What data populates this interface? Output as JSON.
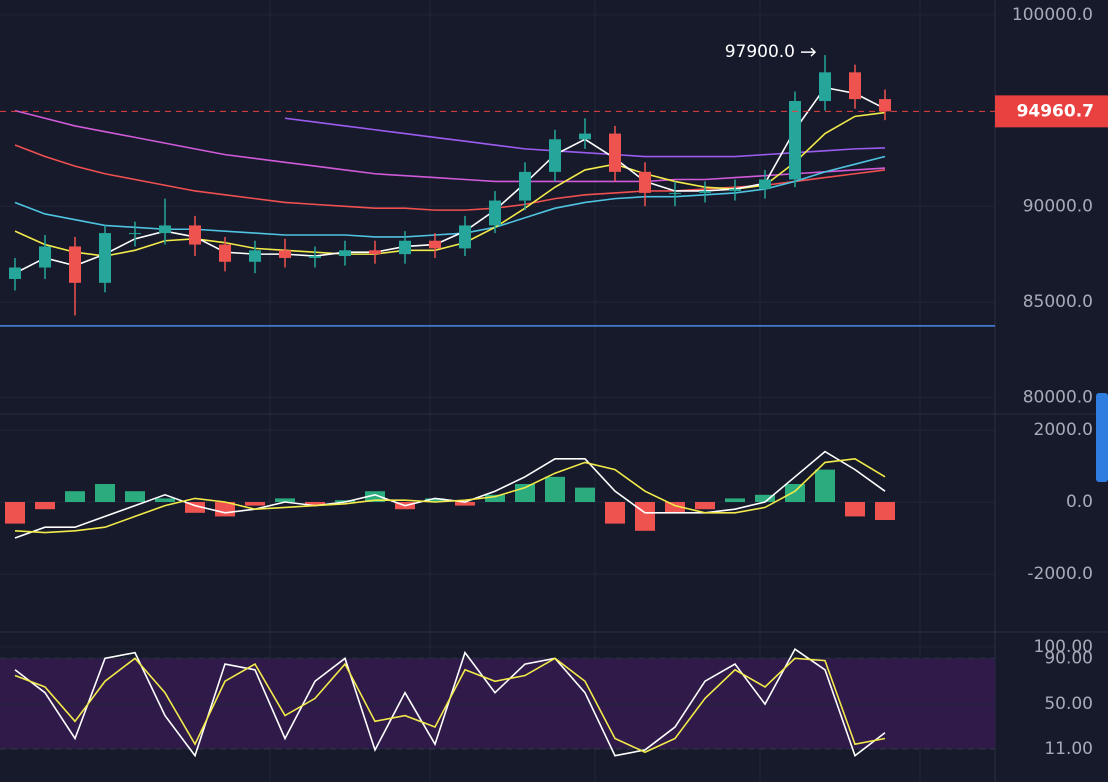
{
  "chart_data": [
    {
      "type": "candlestick",
      "categories": [
        null,
        null,
        null,
        null,
        null,
        null,
        null,
        null,
        null,
        null,
        null,
        null,
        null,
        null,
        null,
        null,
        null,
        null,
        null,
        null,
        null,
        null,
        null,
        null,
        null,
        null,
        null,
        null,
        null,
        null
      ],
      "open": [
        86200,
        86800,
        87900,
        86000,
        88600,
        88600,
        89000,
        88000,
        87100,
        87700,
        87300,
        87400,
        87700,
        87500,
        88200,
        87800,
        89000,
        90300,
        91800,
        93500,
        93800,
        91800,
        90700,
        90700,
        90800,
        90900,
        91400,
        95500,
        97000,
        95600
      ],
      "high": [
        87300,
        88500,
        88400,
        89000,
        89200,
        90400,
        89500,
        88400,
        88200,
        88300,
        87900,
        88200,
        88200,
        88700,
        88600,
        89500,
        90800,
        92300,
        94000,
        94600,
        94200,
        92300,
        91300,
        91300,
        91400,
        91900,
        96000,
        97900,
        97400,
        96100
      ],
      "low": [
        85600,
        86200,
        84300,
        85500,
        87900,
        88000,
        87400,
        86600,
        86500,
        86800,
        86800,
        86900,
        87000,
        87000,
        87300,
        87400,
        88600,
        89800,
        91300,
        93000,
        91300,
        90000,
        90000,
        90200,
        90300,
        90400,
        91000,
        95000,
        95100,
        94500
      ],
      "close": [
        86800,
        87900,
        86000,
        88600,
        88600,
        89000,
        88000,
        87100,
        87700,
        87300,
        87400,
        87700,
        87500,
        88200,
        87800,
        89000,
        90300,
        91800,
        93500,
        93800,
        91800,
        90700,
        90700,
        90800,
        90900,
        91400,
        95500,
        97000,
        95600,
        94961
      ],
      "up_color": "#26a69a",
      "down_color": "#ef5350",
      "series": [
        {
          "color": "#d05ad8",
          "values": [
            95000,
            94600,
            94200,
            93900,
            93600,
            93300,
            93000,
            92700,
            92500,
            92300,
            92100,
            91900,
            91700,
            91600,
            91500,
            91400,
            91300,
            91300,
            91300,
            91300,
            91300,
            91300,
            91400,
            91400,
            91500,
            91600,
            91700,
            91800,
            91900,
            92000
          ]
        },
        {
          "color": "#9c5cf0",
          "values": [
            null,
            null,
            null,
            null,
            null,
            null,
            null,
            null,
            null,
            94600,
            94400,
            94200,
            94000,
            93800,
            93600,
            93400,
            93200,
            93000,
            92900,
            92800,
            92700,
            92600,
            92600,
            92600,
            92600,
            92700,
            92800,
            92900,
            93000,
            93050
          ]
        },
        {
          "color": "#f05050",
          "values": [
            93200,
            92600,
            92100,
            91700,
            91400,
            91100,
            90800,
            90600,
            90400,
            90200,
            90100,
            90000,
            89900,
            89900,
            89800,
            89800,
            89900,
            90100,
            90400,
            90600,
            90700,
            90800,
            90800,
            90900,
            91000,
            91100,
            91300,
            91500,
            91700,
            91900
          ]
        },
        {
          "color": "#4fc3e0",
          "values": [
            90200,
            89600,
            89300,
            89000,
            88900,
            88800,
            88800,
            88700,
            88600,
            88500,
            88500,
            88500,
            88400,
            88400,
            88500,
            88600,
            88900,
            89400,
            89900,
            90200,
            90400,
            90500,
            90500,
            90600,
            90700,
            90900,
            91300,
            91800,
            92200,
            92600
          ]
        },
        {
          "color": "#f2ea4a",
          "values": [
            88700,
            88000,
            87600,
            87400,
            87700,
            88200,
            88300,
            88100,
            87800,
            87700,
            87600,
            87500,
            87500,
            87700,
            87700,
            88100,
            88900,
            89900,
            91000,
            91900,
            92200,
            91700,
            91300,
            91000,
            90900,
            91100,
            92300,
            93800,
            94700,
            94900
          ]
        },
        {
          "color": "#ffffff",
          "values": [
            86500,
            87300,
            86900,
            87500,
            88300,
            88700,
            88400,
            87600,
            87500,
            87500,
            87400,
            87600,
            87600,
            87900,
            88000,
            88700,
            89800,
            91200,
            92700,
            93500,
            92500,
            91300,
            90800,
            90800,
            90900,
            91200,
            94000,
            96200,
            95900,
            95100
          ]
        }
      ],
      "last_price": 94960.7,
      "last_price_color": "#e8413f",
      "hline": 83750,
      "hline_color": "#4a86e8",
      "annotation": {
        "value": 97900,
        "label": "97900.0"
      },
      "ylim": [
        79250,
        100780
      ],
      "yticks": [
        {
          "value": 100000,
          "label": "100000.0"
        },
        {
          "value": 90000,
          "label": "90000.0"
        },
        {
          "value": 85000,
          "label": "85000.0"
        },
        {
          "value": 80000,
          "label": "80000.0"
        }
      ]
    },
    {
      "type": "macd",
      "categories": [
        null,
        null,
        null,
        null,
        null,
        null,
        null,
        null,
        null,
        null,
        null,
        null,
        null,
        null,
        null,
        null,
        null,
        null,
        null,
        null,
        null,
        null,
        null,
        null,
        null,
        null,
        null,
        null,
        null,
        null
      ],
      "histogram": [
        -600,
        -200,
        300,
        500,
        300,
        100,
        -300,
        -400,
        -100,
        100,
        -100,
        50,
        300,
        -200,
        100,
        -100,
        200,
        500,
        700,
        400,
        -600,
        -800,
        -300,
        -200,
        100,
        200,
        500,
        900,
        -400,
        -500
      ],
      "up_color": "#2bab7e",
      "down_color": "#ef5350",
      "series": [
        {
          "color": "#ffffff",
          "values": [
            -1000,
            -700,
            -700,
            -400,
            -100,
            200,
            -100,
            -300,
            -200,
            0,
            -100,
            0,
            200,
            -100,
            100,
            0,
            300,
            700,
            1200,
            1200,
            300,
            -300,
            -300,
            -300,
            -200,
            0,
            700,
            1400,
            900,
            300
          ]
        },
        {
          "color": "#f2ea4a",
          "values": [
            -800,
            -850,
            -800,
            -700,
            -400,
            -100,
            100,
            0,
            -200,
            -150,
            -100,
            -50,
            50,
            50,
            0,
            50,
            150,
            400,
            800,
            1100,
            900,
            300,
            -100,
            -300,
            -300,
            -150,
            300,
            1100,
            1200,
            700
          ]
        }
      ],
      "ylim": [
        -3611,
        2417
      ],
      "yticks": [
        {
          "value": 2000,
          "label": "2000.0"
        },
        {
          "value": 0,
          "label": "0.0"
        },
        {
          "value": -2000,
          "label": "-2000.0"
        }
      ]
    },
    {
      "type": "stochastic",
      "categories": [
        null,
        null,
        null,
        null,
        null,
        null,
        null,
        null,
        null,
        null,
        null,
        null,
        null,
        null,
        null,
        null,
        null,
        null,
        null,
        null,
        null,
        null,
        null,
        null,
        null,
        null,
        null,
        null,
        null,
        null
      ],
      "band": [
        11,
        90
      ],
      "band_color": "#2f1a4a",
      "series": [
        {
          "color": "#ffffff",
          "values": [
            80,
            60,
            20,
            90,
            95,
            40,
            5,
            85,
            80,
            20,
            70,
            90,
            10,
            60,
            15,
            95,
            60,
            85,
            90,
            60,
            5,
            10,
            30,
            70,
            85,
            50,
            98,
            80,
            5,
            25
          ]
        },
        {
          "color": "#f2ea4a",
          "values": [
            75,
            65,
            35,
            70,
            90,
            60,
            15,
            70,
            85,
            40,
            55,
            85,
            35,
            40,
            30,
            80,
            70,
            75,
            90,
            70,
            20,
            8,
            20,
            55,
            80,
            65,
            90,
            88,
            15,
            20
          ]
        }
      ],
      "ylim": [
        -18,
        113
      ],
      "yticks": [
        {
          "value": 100,
          "label": "100.00"
        },
        {
          "value": 90,
          "label": "90.00"
        },
        {
          "value": 50,
          "label": "50.00"
        },
        {
          "value": 11,
          "label": "11.00"
        }
      ]
    }
  ]
}
